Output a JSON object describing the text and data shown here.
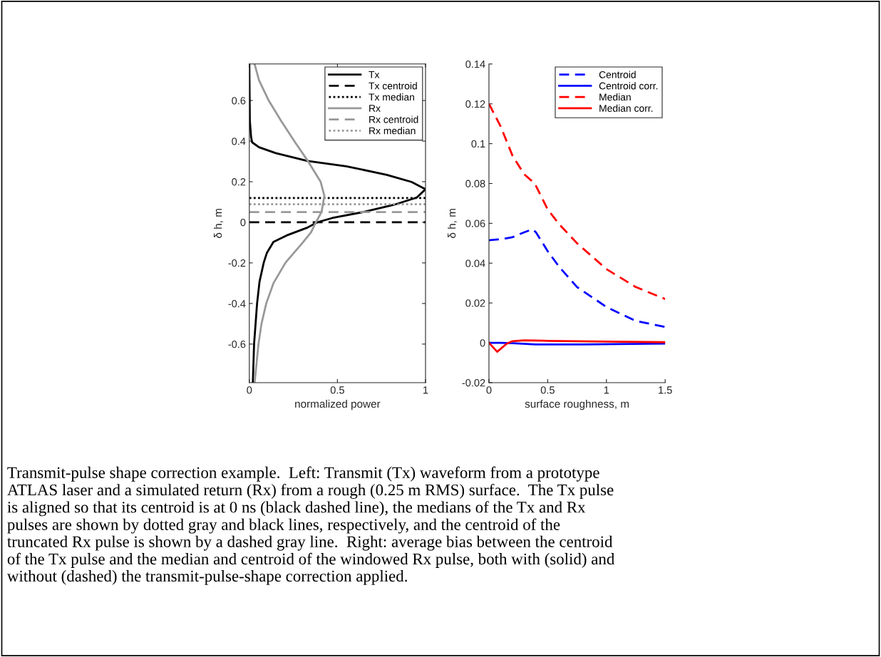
{
  "chart_data": [
    {
      "type": "line",
      "xlabel": "normalized power",
      "ylabel": "δ h, m",
      "xlim": [
        0,
        1
      ],
      "ylim": [
        -0.79,
        0.78
      ],
      "xticks": [
        0,
        0.5,
        1
      ],
      "yticks": [
        -0.6,
        -0.4,
        -0.2,
        0,
        0.2,
        0.4,
        0.6
      ],
      "legend": "top right",
      "grid": false,
      "series": [
        {
          "name": "Tx",
          "color": "#000000",
          "line_style": "solid",
          "x": [
            0.0,
            0.003,
            0.01,
            0.016,
            0.055,
            0.15,
            0.33,
            0.55,
            0.78,
            0.92,
            1.0,
            0.95,
            0.82,
            0.65,
            0.47,
            0.385,
            0.33,
            0.22,
            0.137,
            0.1,
            0.082,
            0.058,
            0.044,
            0.027,
            0.02
          ],
          "values": [
            0.78,
            0.5,
            0.42,
            0.394,
            0.37,
            0.341,
            0.302,
            0.276,
            0.234,
            0.199,
            0.163,
            0.122,
            0.086,
            0.051,
            0.021,
            0.0,
            -0.026,
            -0.062,
            -0.097,
            -0.15,
            -0.198,
            -0.292,
            -0.4,
            -0.6,
            -0.79
          ]
        },
        {
          "name": "Tx centroid",
          "color": "#000000",
          "line_style": "dashed",
          "x": [
            0,
            1
          ],
          "values": [
            0,
            0
          ]
        },
        {
          "name": "Tx median",
          "color": "#000000",
          "line_style": "dotted",
          "x": [
            0,
            1
          ],
          "values": [
            0.12,
            0.12
          ]
        },
        {
          "name": "Rx",
          "color": "#999999",
          "line_style": "solid",
          "x": [
            0.03,
            0.055,
            0.11,
            0.18,
            0.26,
            0.33,
            0.405,
            0.426,
            0.41,
            0.378,
            0.35,
            0.3,
            0.206,
            0.137,
            0.096,
            0.069,
            0.052,
            0.03
          ],
          "values": [
            0.78,
            0.7,
            0.6,
            0.5,
            0.394,
            0.305,
            0.199,
            0.13,
            0.051,
            0.0,
            -0.05,
            -0.103,
            -0.198,
            -0.3,
            -0.4,
            -0.5,
            -0.6,
            -0.79
          ]
        },
        {
          "name": "Rx centroid",
          "color": "#999999",
          "line_style": "dashed",
          "x": [
            0,
            1
          ],
          "values": [
            0.05,
            0.05
          ]
        },
        {
          "name": "Rx median",
          "color": "#999999",
          "line_style": "dotted",
          "x": [
            0,
            1
          ],
          "values": [
            0.089,
            0.089
          ]
        }
      ],
      "annotations": [
        "Transmit-pulse shape correction example.  Left: Transmit (Tx) waveform from a prototype\nATLAS laser and a simulated return (Rx) from a rough (0.25 m RMS) surface.  The Tx pulse\nis aligned so that its centroid is at 0 ns (black dashed line), the medians of the Tx and Rx\npulses are shown by dotted gray and black lines, respectively, and the centroid of the\ntruncated Rx pulse is shown by a dashed gray line.  Right: average bias between the centroid\nof the Tx pulse and the median and centroid of the windowed Rx pulse, both with (solid) and\nwithout (dashed) the transmit-pulse-shape correction applied."
      ]
    },
    {
      "type": "line",
      "xlabel": "surface roughness, m",
      "ylabel": "δ h, m",
      "xlim": [
        0,
        1.5
      ],
      "ylim": [
        -0.02,
        0.14
      ],
      "xticks": [
        0,
        0.5,
        1,
        1.5
      ],
      "yticks": [
        -0.02,
        0,
        0.02,
        0.04,
        0.06,
        0.08,
        0.1,
        0.12,
        0.14
      ],
      "legend": "top right",
      "grid": false,
      "series": [
        {
          "name": "Centroid",
          "color": "#0000ff",
          "line_style": "dashed",
          "x": [
            0,
            0.1,
            0.2,
            0.3,
            0.37,
            0.4,
            0.5,
            0.6,
            0.75,
            1.0,
            1.25,
            1.5
          ],
          "values": [
            0.0515,
            0.052,
            0.053,
            0.0555,
            0.057,
            0.0555,
            0.046,
            0.038,
            0.028,
            0.018,
            0.011,
            0.008
          ]
        },
        {
          "name": "Centroid corr.",
          "color": "#0000ff",
          "line_style": "solid",
          "x": [
            0,
            0.1,
            0.2,
            0.4,
            0.8,
            1.5
          ],
          "values": [
            0,
            0,
            -0.0002,
            -0.0008,
            -0.0008,
            -0.0004
          ]
        },
        {
          "name": "Median",
          "color": "#ff0000",
          "line_style": "dashed",
          "x": [
            0,
            0.1,
            0.2,
            0.3,
            0.39,
            0.5,
            0.6,
            0.75,
            1.0,
            1.25,
            1.5
          ],
          "values": [
            0.12,
            0.1086,
            0.094,
            0.0846,
            0.08,
            0.067,
            0.0594,
            0.05,
            0.037,
            0.028,
            0.022
          ]
        },
        {
          "name": "Median corr.",
          "color": "#ff0000",
          "line_style": "solid",
          "x": [
            0,
            0.07,
            0.15,
            0.2,
            0.3,
            0.5,
            1.0,
            1.5
          ],
          "values": [
            0,
            -0.0045,
            -0.0005,
            0.0008,
            0.0012,
            0.001,
            0.0006,
            0.0003
          ]
        }
      ]
    }
  ]
}
